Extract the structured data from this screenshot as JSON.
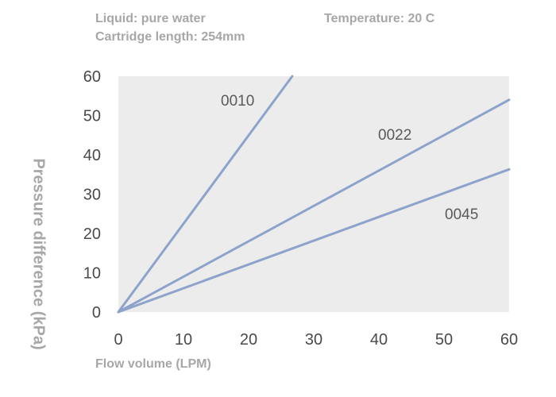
{
  "header": {
    "liquid": "Liquid: pure water",
    "temperature": "Temperature: 20 C",
    "cartridge": "Cartridge length: 254mm"
  },
  "chart_data": {
    "type": "line",
    "xlabel": "Flow volume (LPM)",
    "ylabel": "Pressure difference (kPa)",
    "xlim": [
      0,
      60
    ],
    "ylim": [
      0,
      60
    ],
    "xticks": [
      0,
      10,
      20,
      30,
      40,
      50,
      60
    ],
    "yticks": [
      0,
      10,
      20,
      30,
      40,
      50,
      60
    ],
    "grid": false,
    "plot_background": "#ececec",
    "line_color": "#8ea3cc",
    "series": [
      {
        "name": "0010",
        "x": [
          0,
          26.7
        ],
        "y": [
          0,
          60
        ]
      },
      {
        "name": "0022",
        "x": [
          0,
          60
        ],
        "y": [
          0,
          54
        ]
      },
      {
        "name": "0045",
        "x": [
          0,
          60
        ],
        "y": [
          0,
          36.3
        ]
      }
    ]
  }
}
